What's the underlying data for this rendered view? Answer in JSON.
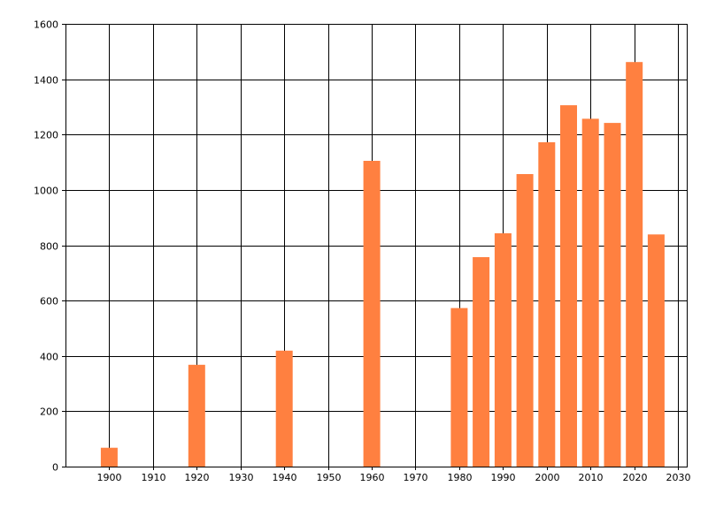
{
  "chart_data": {
    "type": "bar",
    "title": "",
    "xlabel": "",
    "ylabel": "",
    "x": [
      1900,
      1920,
      1940,
      1960,
      1980,
      1985,
      1990,
      1995,
      2000,
      2005,
      2010,
      2015,
      2020,
      2025
    ],
    "values": [
      68,
      368,
      419,
      1105,
      573,
      757,
      843,
      1057,
      1172,
      1306,
      1257,
      1242,
      1462,
      839
    ],
    "xlim": [
      1890,
      2032
    ],
    "ylim": [
      0,
      1600
    ],
    "xticks": [
      1900,
      1910,
      1920,
      1930,
      1940,
      1950,
      1960,
      1970,
      1980,
      1990,
      2000,
      2010,
      2020,
      2030
    ],
    "xtick_labels": [
      "1900",
      "1910",
      "1920",
      "1930",
      "1940",
      "1950",
      "1960",
      "1970",
      "1980",
      "1990",
      "2000",
      "2010",
      "2020",
      "2030"
    ],
    "yticks": [
      0,
      200,
      400,
      600,
      800,
      1000,
      1200,
      1400,
      1600
    ],
    "ytick_labels": [
      "0",
      "200",
      "400",
      "600",
      "800",
      "1000",
      "1200",
      "1400",
      "1600"
    ],
    "grid": true,
    "legend": "none",
    "bar_color": "#ff8040",
    "grid_color": "#000000"
  }
}
